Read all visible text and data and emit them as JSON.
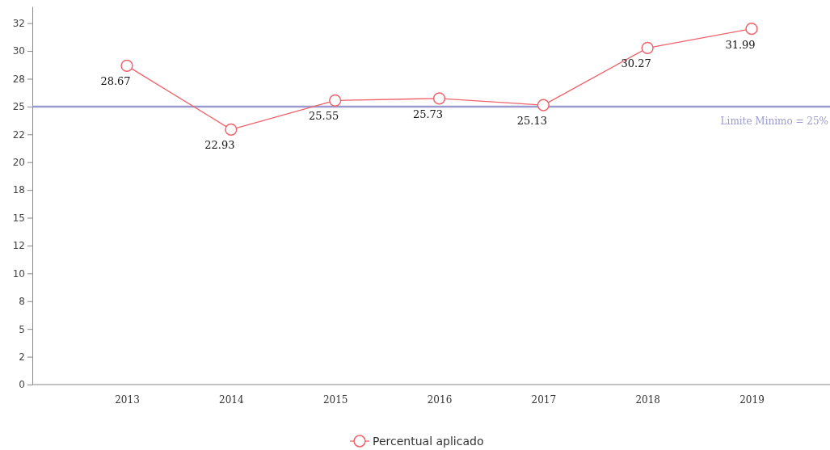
{
  "chart_data": {
    "type": "line",
    "categories": [
      "2013",
      "2014",
      "2015",
      "2016",
      "2017",
      "2018",
      "2019"
    ],
    "series": [
      {
        "name": "Percentual aplicado",
        "color": "#f0636b",
        "values": [
          28.67,
          22.93,
          25.55,
          25.73,
          25.13,
          30.27,
          31.99
        ]
      }
    ],
    "ylim": [
      0,
      34
    ],
    "yticks": [
      0,
      {
        "value": 2.5,
        "label": "2"
      },
      5,
      {
        "value": 7.5,
        "label": "8"
      },
      10,
      {
        "value": 12.5,
        "label": "12"
      },
      15,
      {
        "value": 17.5,
        "label": "18"
      },
      20,
      {
        "value": 22.5,
        "label": "22"
      },
      25,
      {
        "value": 27.5,
        "label": "28"
      },
      30,
      {
        "value": 32.5,
        "label": "32"
      }
    ],
    "ref_lines": [
      {
        "axis": "y",
        "value": 25,
        "label": "Limite Minimo = 25%",
        "color": "#9a9ad0"
      }
    ],
    "data_labels": true,
    "marker": "circle",
    "line_style": "solid",
    "legend": "bottom",
    "grid": false
  }
}
